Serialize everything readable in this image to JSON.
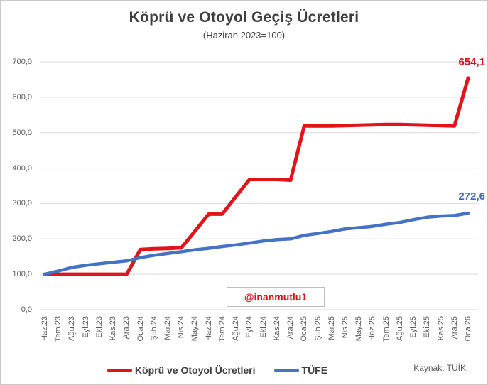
{
  "chart_data": {
    "type": "line",
    "title": "Köprü ve Otoyol Geçiş Ücretleri",
    "subtitle": "(Haziran 2023=100)",
    "categories": [
      "Haz.23",
      "Tem.23",
      "Ağu.23",
      "Eyl.23",
      "Eki.23",
      "Kas.23",
      "Ara.23",
      "Oca.24",
      "Şub.24",
      "Mar.24",
      "Nis.24",
      "May.24",
      "Haz.24",
      "Tem.24",
      "Ağu.24",
      "Eyl.24",
      "Eki.24",
      "Kas.24",
      "Ara.24",
      "Oca.25",
      "Şub.25",
      "Mar.25",
      "Nis.25",
      "May.25",
      "Haz.25",
      "Tem.25",
      "Ağu.25",
      "Eyl.25",
      "Eki.25",
      "Kas.25",
      "Ara.25",
      "Oca.26"
    ],
    "series": [
      {
        "name": "Köprü ve Otoyol Ücretleri",
        "color": "#e01419",
        "label_color": "#d21318",
        "end_label": "654,1",
        "values": [
          100,
          100,
          100,
          100,
          100,
          100,
          100,
          170,
          172,
          173,
          175,
          222,
          270,
          270,
          320,
          368,
          368,
          368,
          366,
          519,
          519,
          519,
          520,
          521,
          522,
          523,
          523,
          522,
          521,
          520,
          519,
          654.1
        ]
      },
      {
        "name": "TÜFE",
        "color": "#4472c4",
        "label_color": "#3d68b3",
        "end_label": "272,6",
        "values": [
          100,
          109.6,
          119.6,
          125.4,
          129.7,
          134,
          137.9,
          147.1,
          153.7,
          158.6,
          163.8,
          169.3,
          173.2,
          178.6,
          182.9,
          188.4,
          194,
          197.9,
          200,
          210.1,
          215.2,
          221.1,
          228.2,
          231.6,
          235.2,
          241.4,
          246.3,
          254.4,
          261.1,
          264.5,
          266,
          272.6
        ]
      }
    ],
    "ylim": [
      0,
      700
    ],
    "ytick_step": 100,
    "ytick_labels": [
      "700,0",
      "600,0",
      "500,0",
      "400,0",
      "300,0",
      "200,0",
      "100,0",
      "0,0"
    ],
    "grid": true,
    "grid_color": "#d9d9d9",
    "legend_position": "bottom",
    "annotation": "@inanmutlu1",
    "source": "Kaynak: TÜİK"
  }
}
